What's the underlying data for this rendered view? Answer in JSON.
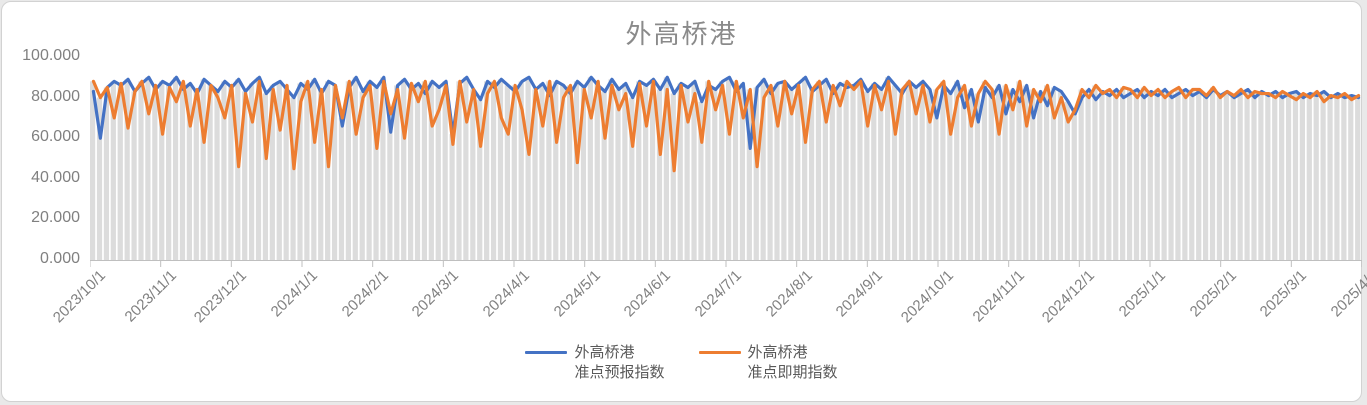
{
  "title": "外高桥港",
  "y_axis": {
    "labels": [
      "100.000",
      "80.000",
      "60.000",
      "40.000",
      "20.000",
      "0.000"
    ]
  },
  "x_axis": {
    "labels": [
      "2023/10/1",
      "2023/11/1",
      "2023/12/1",
      "2024/1/1",
      "2024/2/1",
      "2024/3/1",
      "2024/4/1",
      "2024/5/1",
      "2024/6/1",
      "2024/7/1",
      "2024/8/1",
      "2024/9/1",
      "2024/10/1",
      "2024/11/1",
      "2024/12/1",
      "2025/1/1",
      "2025/2/1",
      "2025/3/1",
      "2025/4/1"
    ]
  },
  "legend": {
    "items": [
      {
        "line1": "外高桥港",
        "line2": "准点预报指数",
        "color": "#4472C4"
      },
      {
        "line1": "外高桥港",
        "line2": "准点即期指数",
        "color": "#ED7D31"
      }
    ]
  },
  "colors": {
    "blue_series": "#4472C4",
    "orange_series": "#ED7D31",
    "background_bars": "#dcdcdc",
    "axis_line": "#bfbfbf",
    "axis_text": "#808080",
    "title_text": "#8a8a8a",
    "legend_text": "#595959"
  },
  "chart_data": {
    "type": "line",
    "title": "外高桥港",
    "x_start": "2023/10/1",
    "x_end": "2025/4/1",
    "sample_interval_days": 3,
    "x_tick_labels": [
      "2023/10/1",
      "2023/11/1",
      "2023/12/1",
      "2024/1/1",
      "2024/2/1",
      "2024/3/1",
      "2024/4/1",
      "2024/5/1",
      "2024/6/1",
      "2024/7/1",
      "2024/8/1",
      "2024/9/1",
      "2024/10/1",
      "2024/11/1",
      "2024/12/1",
      "2025/1/1",
      "2025/2/1",
      "2025/3/1",
      "2025/4/1"
    ],
    "ylim": [
      0,
      100
    ],
    "y_ticks": [
      0,
      20,
      40,
      60,
      80,
      100
    ],
    "grid": "off",
    "legend_position": "bottom",
    "background_bars": {
      "color": "#dcdcdc",
      "height": "max_of_series"
    },
    "series": [
      {
        "name": "外高桥港准点预报指数",
        "color": "#4472C4",
        "values": [
          83,
          60,
          85,
          88,
          86,
          89,
          83,
          87,
          90,
          84,
          88,
          86,
          90,
          84,
          87,
          82,
          89,
          86,
          83,
          88,
          85,
          89,
          83,
          87,
          90,
          82,
          86,
          88,
          84,
          80,
          87,
          84,
          89,
          82,
          88,
          86,
          66,
          85,
          90,
          83,
          88,
          85,
          90,
          63,
          86,
          89,
          84,
          87,
          82,
          88,
          85,
          88,
          62,
          87,
          90,
          84,
          79,
          88,
          85,
          89,
          86,
          83,
          88,
          90,
          84,
          87,
          81,
          88,
          86,
          82,
          88,
          85,
          90,
          86,
          83,
          89,
          84,
          87,
          80,
          88,
          86,
          89,
          84,
          90,
          82,
          87,
          85,
          88,
          78,
          86,
          84,
          88,
          90,
          83,
          87,
          55,
          85,
          89,
          82,
          87,
          88,
          84,
          87,
          90,
          83,
          86,
          89,
          82,
          87,
          85,
          86,
          89,
          83,
          87,
          84,
          90,
          86,
          82,
          88,
          85,
          88,
          84,
          70,
          86,
          82,
          88,
          75,
          84,
          68,
          85,
          80,
          86,
          72,
          84,
          78,
          86,
          70,
          83,
          76,
          85,
          83,
          78,
          72,
          80,
          84,
          79,
          83,
          81,
          84,
          80,
          82,
          84,
          80,
          83,
          81,
          84,
          80,
          82,
          84,
          81,
          83,
          80,
          84,
          81,
          83,
          80,
          82,
          84,
          80,
          83,
          81,
          83,
          80,
          82,
          83,
          80,
          82,
          81,
          83,
          80,
          82,
          80,
          81,
          80
        ]
      },
      {
        "name": "外高桥港准点即期指数",
        "color": "#ED7D31",
        "values": [
          88,
          80,
          85,
          70,
          87,
          65,
          83,
          88,
          72,
          86,
          62,
          85,
          78,
          88,
          66,
          84,
          58,
          86,
          80,
          70,
          86,
          46,
          82,
          68,
          88,
          50,
          84,
          64,
          86,
          45,
          78,
          88,
          58,
          84,
          46,
          86,
          70,
          88,
          62,
          80,
          86,
          55,
          88,
          72,
          84,
          60,
          87,
          78,
          88,
          66,
          74,
          86,
          57,
          88,
          68,
          84,
          56,
          82,
          88,
          70,
          62,
          86,
          74,
          52,
          84,
          66,
          88,
          58,
          80,
          86,
          48,
          84,
          70,
          88,
          60,
          86,
          74,
          82,
          56,
          87,
          66,
          88,
          52,
          84,
          44,
          86,
          68,
          82,
          58,
          88,
          74,
          86,
          62,
          88,
          70,
          84,
          46,
          80,
          86,
          66,
          88,
          72,
          86,
          58,
          84,
          88,
          68,
          86,
          76,
          88,
          84,
          88,
          66,
          86,
          74,
          88,
          62,
          84,
          88,
          72,
          86,
          68,
          84,
          88,
          62,
          80,
          86,
          66,
          82,
          88,
          84,
          62,
          86,
          74,
          88,
          66,
          84,
          78,
          86,
          70,
          80,
          68,
          74,
          84,
          80,
          86,
          82,
          84,
          80,
          85,
          84,
          80,
          85,
          81,
          84,
          80,
          83,
          85,
          80,
          84,
          84,
          81,
          85,
          80,
          83,
          81,
          84,
          80,
          83,
          82,
          82,
          80,
          83,
          81,
          79,
          82,
          80,
          83,
          78,
          81,
          80,
          82,
          79,
          81
        ]
      }
    ]
  }
}
